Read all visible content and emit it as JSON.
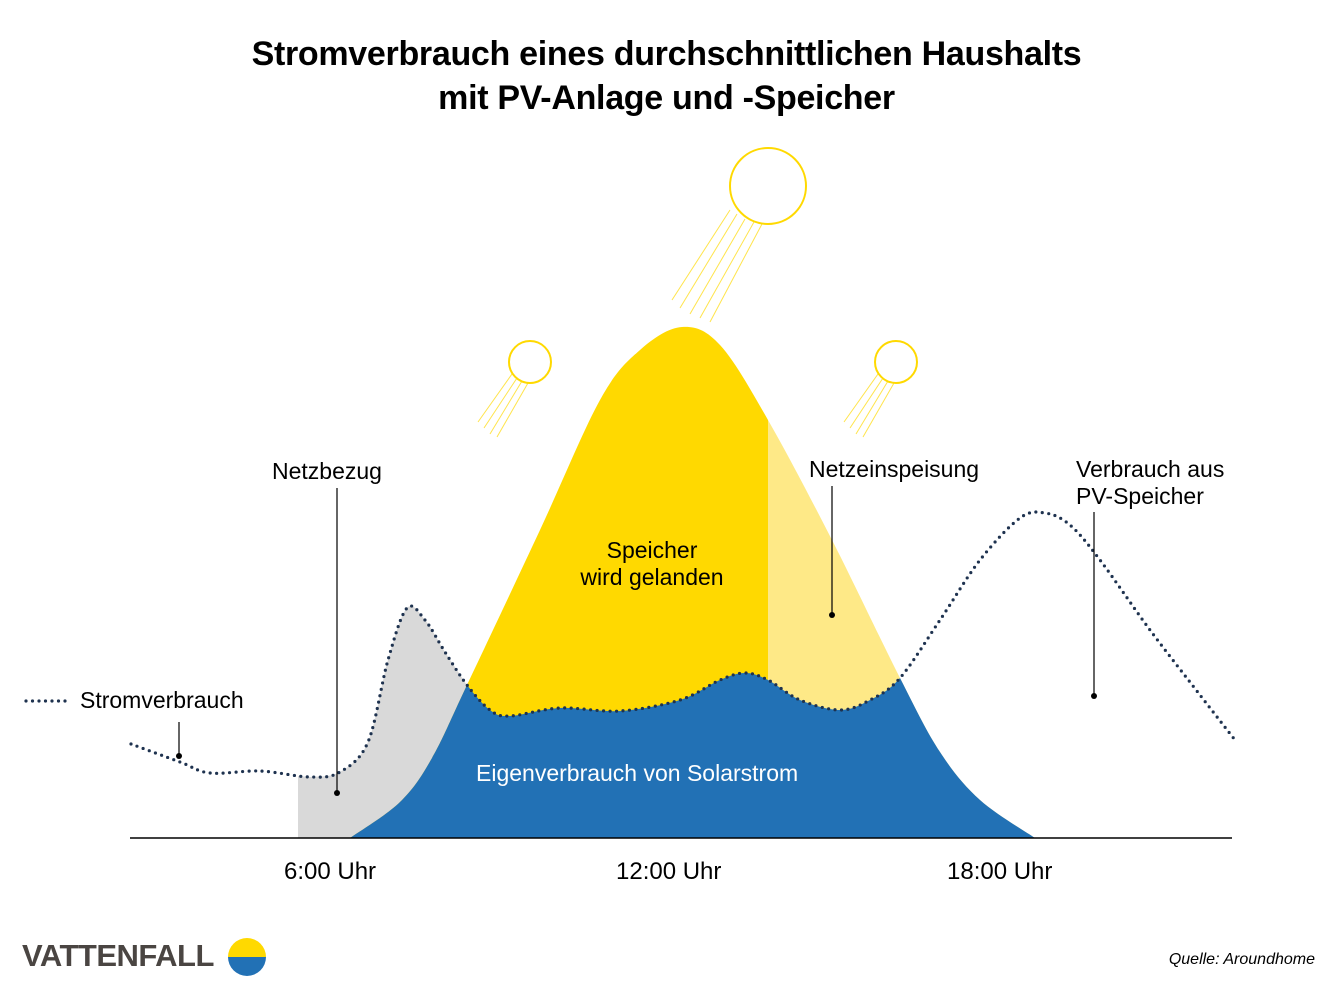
{
  "title_line1": "Stromverbrauch eines durchschnittlichen Haushalts",
  "title_line2": "mit PV-Anlage und -Speicher",
  "labels": {
    "netzbezug": "Netzbezug",
    "netzeinspeisung": "Netzeinspeisung",
    "verbrauch_speicher_1": "Verbrauch aus",
    "verbrauch_speicher_2": "PV-Speicher",
    "speicher_1": "Speicher",
    "speicher_2": "wird gelanden",
    "eigenverbrauch": "Eigenverbrauch von Solarstrom",
    "legend_stromverbrauch": "Stromverbrauch"
  },
  "x_ticks": [
    "6:00 Uhr",
    "12:00 Uhr",
    "18:00 Uhr"
  ],
  "colors": {
    "solar_storage": "#FFD900",
    "grid_feed": "#FEE987",
    "self_consumption": "#2271B5",
    "grid_draw": "#D9D9D9",
    "consumption_line": "#1E324F"
  },
  "logo_text": "VATTENFALL",
  "source": "Quelle: Aroundhome"
}
